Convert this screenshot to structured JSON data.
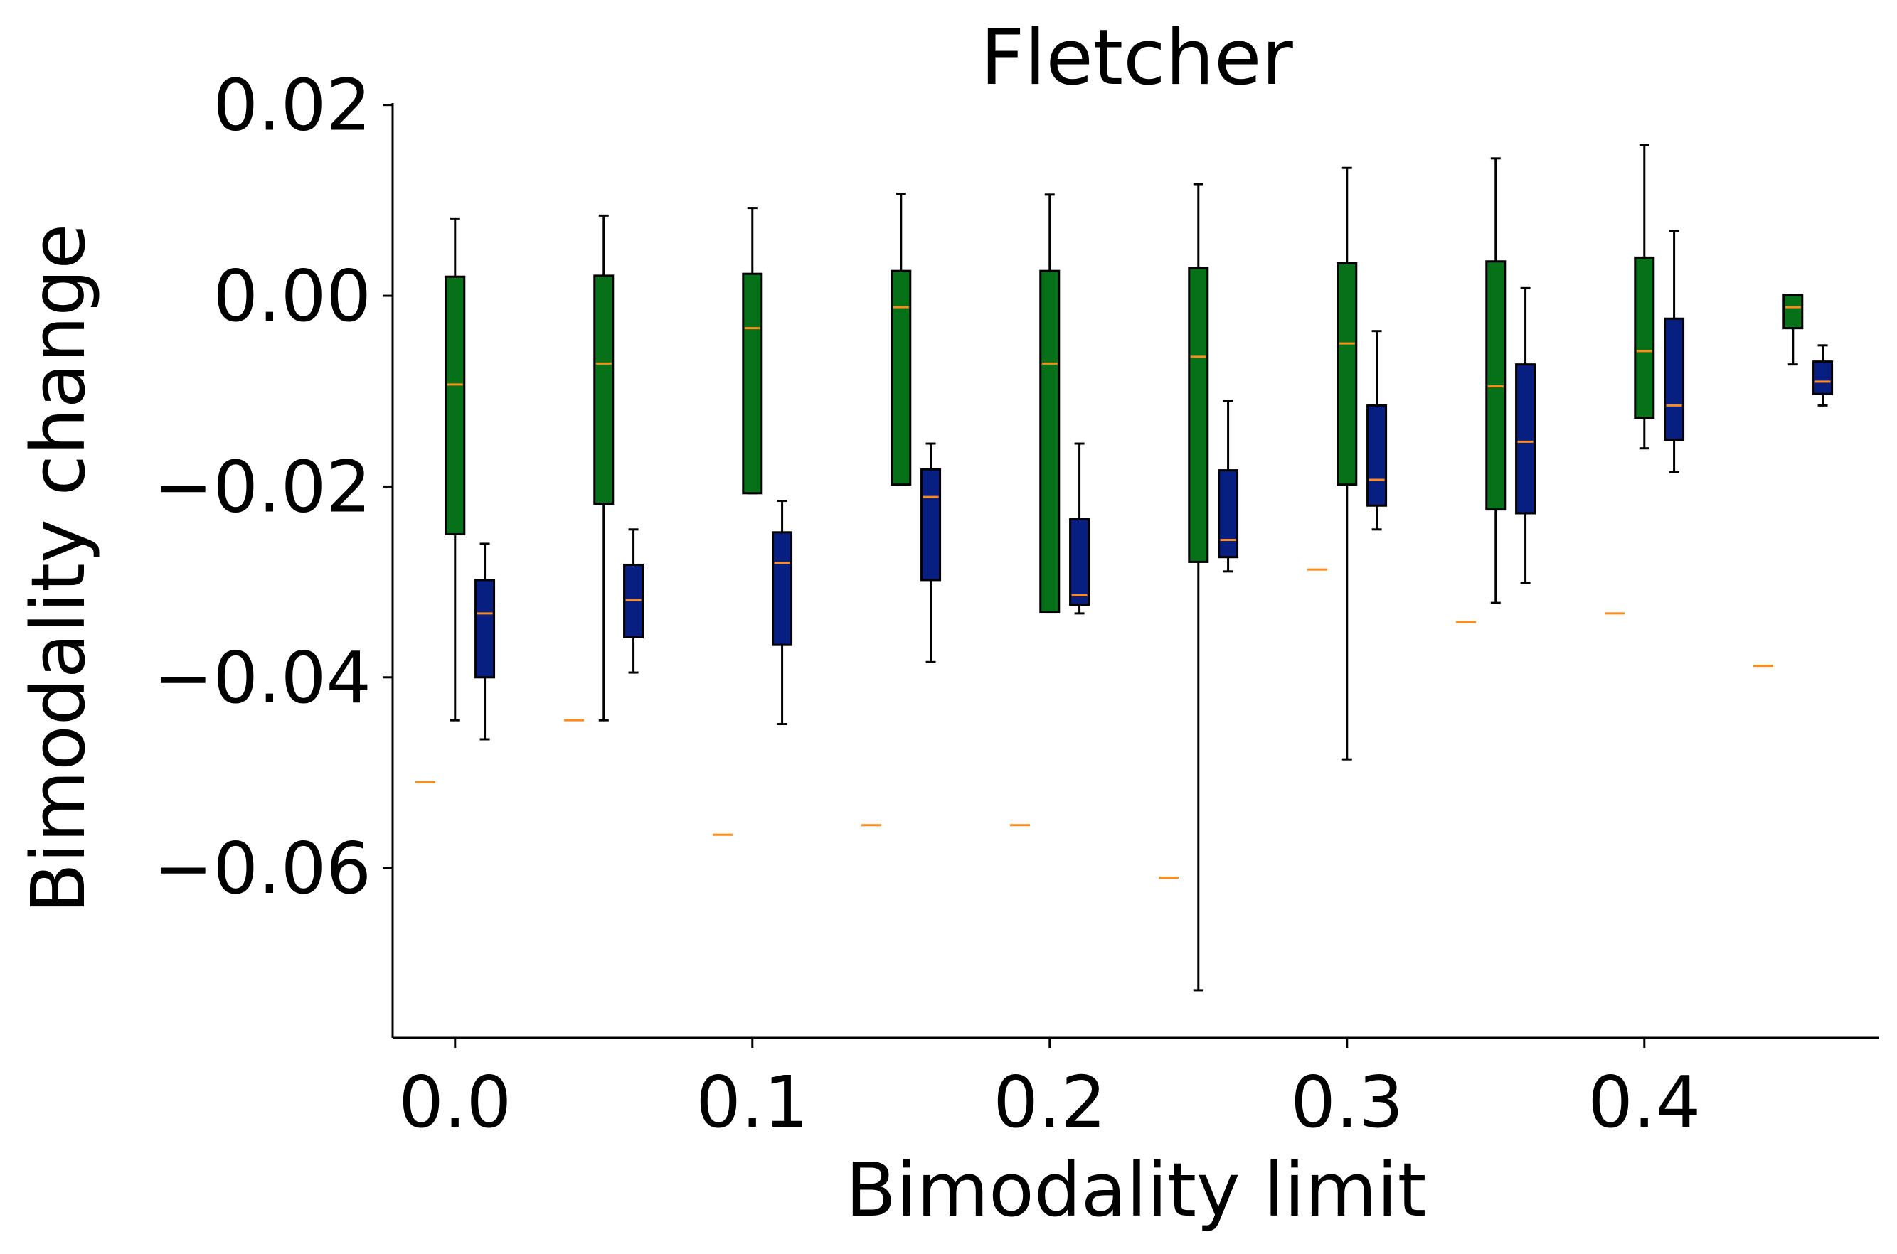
{
  "chart_data": {
    "type": "box",
    "title": "Fletcher",
    "xlabel": "Bimodality limit",
    "ylabel": "Bimodality change",
    "xlim": [
      -0.021,
      0.479
    ],
    "ylim": [
      -0.0778,
      0.0202
    ],
    "x_ticks": [
      "0.0",
      "0.1",
      "0.2",
      "0.3",
      "0.4"
    ],
    "x_tick_values": [
      0.0,
      0.1,
      0.2,
      0.3,
      0.4
    ],
    "y_ticks": [
      "0.02",
      "0.00",
      "−0.02",
      "−0.04",
      "−0.06"
    ],
    "y_tick_values": [
      0.02,
      0.0,
      -0.02,
      -0.04,
      -0.06
    ],
    "grid": false,
    "colors": {
      "green_box": "#067118",
      "blue_box": "#061f80",
      "median": "#ff8c1a",
      "whisker": "#000000"
    },
    "series": [
      {
        "color": "green",
        "boxes": [
          {
            "x": 0.0,
            "whislo": -0.0445,
            "q1": -0.025,
            "med": -0.0093,
            "q3": 0.002,
            "whishi": 0.0081
          },
          {
            "x": 0.05,
            "whislo": -0.0445,
            "q1": -0.0218,
            "med": -0.0071,
            "q3": 0.0021,
            "whishi": 0.0084
          },
          {
            "x": 0.1,
            "whislo": -0.0207,
            "q1": -0.0207,
            "med": -0.0034,
            "q3": 0.0023,
            "whishi": 0.0092
          },
          {
            "x": 0.15,
            "whislo": -0.0198,
            "q1": -0.0198,
            "med": -0.0012,
            "q3": 0.0026,
            "whishi": 0.0107
          },
          {
            "x": 0.2,
            "whislo": -0.0332,
            "q1": -0.0332,
            "med": -0.0071,
            "q3": 0.0026,
            "whishi": 0.0106
          },
          {
            "x": 0.25,
            "whislo": -0.0728,
            "q1": -0.0279,
            "med": -0.0064,
            "q3": 0.0029,
            "whishi": 0.0117
          },
          {
            "x": 0.3,
            "whislo": -0.0486,
            "q1": -0.0198,
            "med": -0.005,
            "q3": 0.0034,
            "whishi": 0.0134
          },
          {
            "x": 0.35,
            "whislo": -0.0322,
            "q1": -0.0224,
            "med": -0.0095,
            "q3": 0.0036,
            "whishi": 0.0144
          },
          {
            "x": 0.4,
            "whislo": -0.016,
            "q1": -0.0128,
            "med": -0.0058,
            "q3": 0.004,
            "whishi": 0.0158
          },
          {
            "x": 0.45,
            "whislo": -0.0072,
            "q1": -0.0034,
            "med": -0.0012,
            "q3": 0.0001,
            "whishi": 0.0001
          }
        ]
      },
      {
        "color": "blue",
        "boxes": [
          {
            "x": 0.0,
            "whislo": -0.0465,
            "q1": -0.04,
            "med": -0.0333,
            "q3": -0.0298,
            "whishi": -0.026
          },
          {
            "x": 0.05,
            "whislo": -0.0395,
            "q1": -0.0358,
            "med": -0.0319,
            "q3": -0.0282,
            "whishi": -0.0245
          },
          {
            "x": 0.1,
            "whislo": -0.0449,
            "q1": -0.0366,
            "med": -0.028,
            "q3": -0.0248,
            "whishi": -0.0215
          },
          {
            "x": 0.15,
            "whislo": -0.0384,
            "q1": -0.0298,
            "med": -0.0211,
            "q3": -0.0182,
            "whishi": -0.0155
          },
          {
            "x": 0.2,
            "whislo": -0.0333,
            "q1": -0.0324,
            "med": -0.0314,
            "q3": -0.0234,
            "whishi": -0.0155
          },
          {
            "x": 0.25,
            "whislo": -0.0289,
            "q1": -0.0274,
            "med": -0.0256,
            "q3": -0.0183,
            "whishi": -0.011
          },
          {
            "x": 0.3,
            "whislo": -0.0245,
            "q1": -0.022,
            "med": -0.0193,
            "q3": -0.0115,
            "whishi": -0.0037
          },
          {
            "x": 0.35,
            "whislo": -0.0301,
            "q1": -0.0228,
            "med": -0.0153,
            "q3": -0.0072,
            "whishi": 0.0008
          },
          {
            "x": 0.4,
            "whislo": -0.0185,
            "q1": -0.0151,
            "med": -0.0115,
            "q3": -0.0024,
            "whishi": 0.0068
          },
          {
            "x": 0.45,
            "whislo": -0.0115,
            "q1": -0.0103,
            "med": -0.009,
            "q3": -0.0069,
            "whishi": -0.0052
          }
        ]
      }
    ],
    "isolated_medians": [
      {
        "x": -0.01,
        "y": -0.051
      },
      {
        "x": 0.04,
        "y": -0.0445
      },
      {
        "x": 0.09,
        "y": -0.0565
      },
      {
        "x": 0.14,
        "y": -0.0555
      },
      {
        "x": 0.19,
        "y": -0.0555
      },
      {
        "x": 0.24,
        "y": -0.061
      },
      {
        "x": 0.29,
        "y": -0.0287
      },
      {
        "x": 0.34,
        "y": -0.0342
      },
      {
        "x": 0.39,
        "y": -0.0333
      },
      {
        "x": 0.44,
        "y": -0.0388
      }
    ]
  }
}
